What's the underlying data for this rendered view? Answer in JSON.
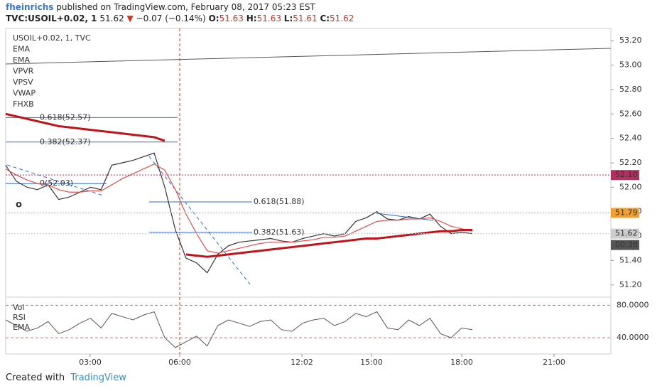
{
  "header": {
    "author": "fheinrichs",
    "published": "published on TradingView.com, February 08, 2017 05:23 EST",
    "symbol": "TVC:USOIL+0.02, 1",
    "last": 51.62,
    "change": "−0.07 (−0.14%)",
    "ohlc": [
      {
        "key": "O:",
        "value": 51.63
      },
      {
        "key": "H:",
        "value": 51.63
      },
      {
        "key": "L:",
        "value": 51.61
      },
      {
        "key": "C:",
        "value": 51.62
      }
    ]
  },
  "footer": {
    "created": "Created with",
    "brand": "TradingView"
  },
  "chart_data": {
    "type": "line",
    "legend": [
      "USOIL+0.02, 1, TVC",
      "EMA",
      "EMA",
      "VPVR",
      "VPSV",
      "VWAP",
      "FHXB"
    ],
    "xticks": [
      "03:00",
      "06:00",
      "12:02",
      "15:00",
      "18:00",
      "21:00"
    ],
    "ylim": [
      51.1,
      53.3
    ],
    "yticks": [
      {
        "value": 51.2,
        "label": "51.20"
      },
      {
        "value": 51.4,
        "label": "51.40"
      },
      {
        "value": 51.6,
        "label": "51.60"
      },
      {
        "value": 51.8,
        "label": "51.80"
      },
      {
        "value": 52,
        "label": "52.00"
      },
      {
        "value": 52.2,
        "label": "52.20"
      },
      {
        "value": 52.4,
        "label": "52.40"
      },
      {
        "value": 52.6,
        "label": "52.60"
      },
      {
        "value": 52.8,
        "label": "52.80"
      },
      {
        "value": 53,
        "label": "53.00"
      },
      {
        "value": 53.2,
        "label": "53.20"
      }
    ],
    "series": [
      {
        "name": "USOIL+0.02, 1, TVC",
        "color": "#333333",
        "values": [
          52.18,
          52.05,
          52.0,
          51.98,
          52.02,
          51.9,
          51.92,
          51.96,
          52.0,
          51.98,
          52.18,
          52.2,
          52.22,
          52.25,
          52.28,
          52.0,
          51.65,
          51.42,
          51.38,
          51.3,
          51.45,
          51.52,
          51.55,
          51.56,
          51.57,
          51.58,
          51.56,
          51.55,
          51.58,
          51.6,
          51.62,
          51.6,
          51.62,
          51.72,
          51.75,
          51.8,
          51.74,
          51.73,
          51.76,
          51.74,
          51.78,
          51.68,
          51.62,
          51.63,
          51.62
        ]
      },
      {
        "name": "EMA",
        "color": "#e05050",
        "values": [
          52.15,
          52.1,
          52.06,
          52.03,
          52.02,
          51.98,
          51.96,
          51.96,
          51.97,
          51.97,
          52.02,
          52.07,
          52.11,
          52.15,
          52.19,
          52.14,
          51.98,
          51.78,
          51.62,
          51.48,
          51.46,
          51.48,
          51.5,
          51.52,
          51.54,
          51.55,
          51.55,
          51.55,
          51.56,
          51.57,
          51.59,
          51.59,
          51.6,
          51.64,
          51.68,
          51.72,
          51.73,
          51.73,
          51.74,
          51.74,
          51.75,
          51.72,
          51.68,
          51.66,
          51.64
        ]
      },
      {
        "name": "EMA",
        "color": "#c0141b",
        "values": [
          52.6,
          52.58,
          52.56,
          52.54,
          52.52,
          52.5,
          52.49,
          52.48,
          52.47,
          52.46,
          52.45,
          52.44,
          52.43,
          52.42,
          52.41,
          52.38,
          null,
          51.45,
          51.44,
          51.43,
          51.44,
          51.45,
          51.46,
          51.47,
          51.48,
          51.49,
          51.5,
          51.51,
          51.52,
          51.53,
          51.54,
          51.55,
          51.56,
          51.57,
          51.58,
          51.58,
          51.59,
          51.6,
          51.61,
          51.62,
          51.63,
          51.64,
          51.64,
          51.65,
          51.65
        ]
      }
    ],
    "fib": [
      {
        "label": "0.618(52.57)",
        "value": 52.57
      },
      {
        "label": "0.382(52.37)",
        "value": 52.37
      },
      {
        "label": "0(52.03)",
        "value": 52.03
      },
      {
        "label": "0.618(51.88)",
        "value": 51.88
      },
      {
        "label": "0.382(51.63)",
        "value": 51.63
      }
    ],
    "price_tags": [
      {
        "value": 52.1,
        "label": "52.10",
        "color": "#b03060"
      },
      {
        "value": 51.79,
        "label": "51.79",
        "color": "#f0a030"
      },
      {
        "value": 51.62,
        "label": "51.62",
        "color": "#cccccc"
      }
    ],
    "countdown": "00:38",
    "rsi": {
      "labels": [
        "Vol",
        "RSI",
        "EMA"
      ],
      "ylim": [
        20,
        90
      ],
      "yticks": [
        {
          "value": 80,
          "label": "80.0000"
        },
        {
          "value": 40,
          "label": "40.0000"
        }
      ],
      "values": [
        62,
        55,
        48,
        52,
        60,
        45,
        50,
        58,
        64,
        52,
        70,
        66,
        62,
        68,
        72,
        40,
        28,
        35,
        42,
        30,
        55,
        62,
        58,
        54,
        60,
        62,
        50,
        48,
        58,
        62,
        64,
        55,
        60,
        70,
        66,
        72,
        52,
        50,
        62,
        55,
        64,
        45,
        40,
        52,
        50
      ]
    }
  }
}
